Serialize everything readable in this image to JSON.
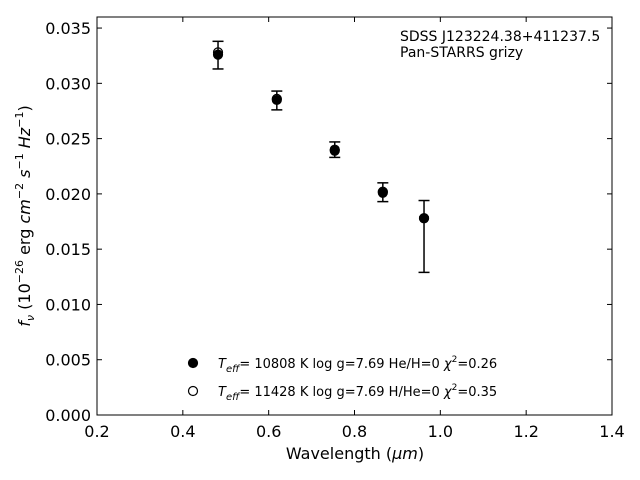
{
  "chart_data": {
    "type": "scatter",
    "xlim": [
      0.2,
      1.4
    ],
    "ylim": [
      0.0,
      0.036
    ],
    "xticks": [
      "0.2",
      "0.4",
      "0.6",
      "0.8",
      "1.0",
      "1.2",
      "1.4"
    ],
    "yticks": [
      "0.000",
      "0.005",
      "0.010",
      "0.015",
      "0.020",
      "0.025",
      "0.030",
      "0.035"
    ],
    "xlabel_main": "Wavelength (",
    "xlabel_unit": "μm",
    "xlabel_close": ")",
    "ylabel": {
      "f": "f",
      "nu": "ν",
      "open": " (10",
      "e1": "−26",
      "erg": " erg ",
      "cm": "cm",
      "e2": "−2",
      "s": " s",
      "e3": "−1",
      "hz": " Hz",
      "e4": "−1",
      "close": ")"
    },
    "annotation": [
      "SDSS J123224.38+411237.5",
      "Pan-STARRS grizy"
    ],
    "grid": false,
    "legend_position": "bottom-center",
    "observed": [
      {
        "x": 0.482,
        "y": 0.0325,
        "err_low": 0.0313,
        "err_high": 0.0338
      },
      {
        "x": 0.619,
        "y": 0.0284,
        "err_low": 0.0276,
        "err_high": 0.0293
      },
      {
        "x": 0.754,
        "y": 0.0239,
        "err_low": 0.0233,
        "err_high": 0.0247
      },
      {
        "x": 0.866,
        "y": 0.0202,
        "err_low": 0.0193,
        "err_high": 0.021
      },
      {
        "x": 0.962,
        "y": 0.0178,
        "err_low": 0.0129,
        "err_high": 0.0194
      }
    ],
    "series": [
      {
        "marker": "filled",
        "teff": "= 10808 K  log g=7.69  He/H=0  ",
        "chi": "=0.26",
        "values": [
          {
            "x": 0.482,
            "y": 0.0326
          },
          {
            "x": 0.619,
            "y": 0.0285
          },
          {
            "x": 0.754,
            "y": 0.0239
          },
          {
            "x": 0.866,
            "y": 0.0201
          },
          {
            "x": 0.962,
            "y": 0.0178
          }
        ]
      },
      {
        "marker": "open",
        "teff": "= 11428 K  log g=7.69  H/He=0  ",
        "chi": "=0.35",
        "values": [
          {
            "x": 0.482,
            "y": 0.0328
          },
          {
            "x": 0.619,
            "y": 0.0286
          },
          {
            "x": 0.754,
            "y": 0.024
          },
          {
            "x": 0.866,
            "y": 0.0202
          },
          {
            "x": 0.962,
            "y": 0.0178
          }
        ]
      }
    ],
    "legend_symbols": {
      "T": "T",
      "eff": "eff",
      "chi": "χ",
      "sq": "2"
    }
  }
}
